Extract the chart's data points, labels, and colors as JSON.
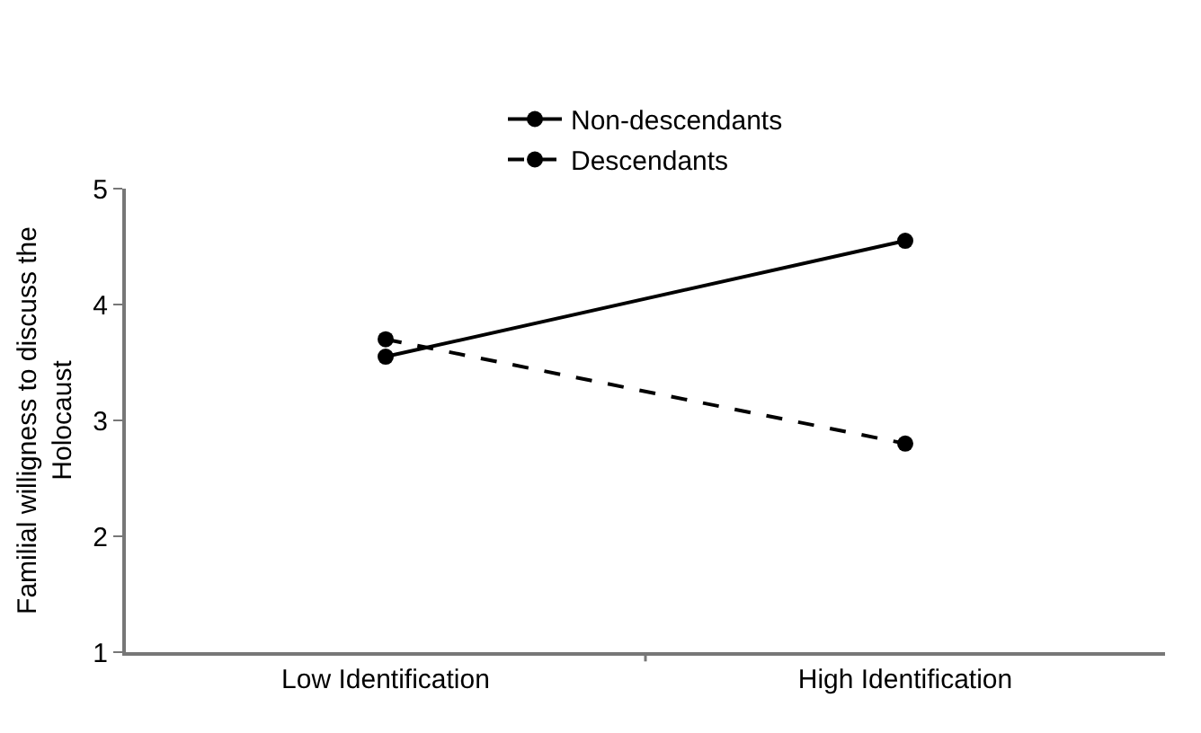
{
  "chart_data": {
    "type": "line",
    "ylabel": "Familial willigness to discuss the Holocaust",
    "categories": [
      "Low Identification",
      "High Identification"
    ],
    "series": [
      {
        "name": "Non-descendants",
        "color": "#000000",
        "values": [
          3.55,
          4.55
        ],
        "line_style": "solid"
      },
      {
        "name": "Descendants",
        "color": "#000000",
        "values": [
          3.7,
          2.8
        ],
        "line_style": "dashed"
      }
    ],
    "ylim": [
      1,
      5
    ],
    "yticks": [
      1,
      2,
      3,
      4,
      5
    ],
    "legend": "top",
    "marker": "circle"
  }
}
